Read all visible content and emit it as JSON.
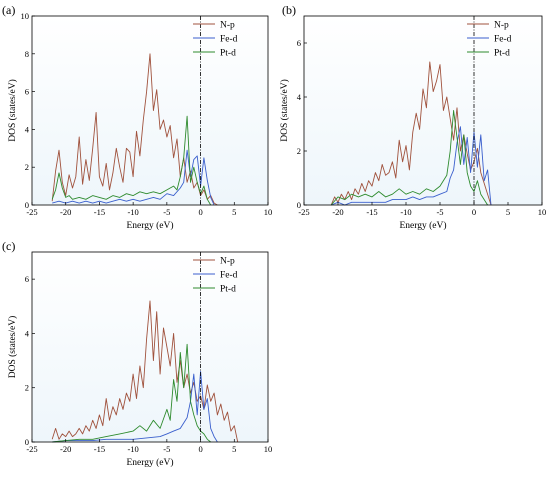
{
  "chart_data": [
    {
      "type": "line",
      "panel": "(a)",
      "xlabel": "Energy (eV)",
      "ylabel": "DOS (states/eV)",
      "xlim": [
        -25,
        10
      ],
      "ylim": [
        0,
        10
      ],
      "xticks": [
        -25,
        -20,
        -15,
        -10,
        -5,
        0,
        5,
        10
      ],
      "yticks": [
        0,
        2,
        4,
        6,
        8,
        10
      ],
      "fermi_level": 0,
      "legend": "top-right",
      "series": [
        {
          "name": "N-p",
          "color": "#a0523d",
          "x": [
            -22,
            -21.5,
            -21,
            -20.5,
            -20,
            -19.5,
            -19,
            -18.5,
            -18,
            -17.5,
            -17,
            -16.5,
            -16,
            -15.5,
            -15,
            -14.5,
            -14,
            -13.5,
            -13,
            -12.5,
            -12,
            -11.5,
            -11,
            -10.5,
            -10,
            -9.5,
            -9,
            -8.5,
            -8,
            -7.5,
            -7,
            -6.5,
            -6,
            -5.5,
            -5,
            -4.5,
            -4,
            -3.5,
            -3,
            -2.5,
            -2,
            -1.5,
            -1,
            -0.5,
            0,
            0.5,
            1,
            1.5,
            2,
            2.5
          ],
          "y": [
            0.2,
            1.8,
            2.9,
            1.2,
            0.5,
            1.6,
            0.9,
            1.5,
            3.6,
            1.1,
            2.4,
            1.3,
            3.0,
            4.9,
            1.5,
            1.0,
            2.2,
            0.8,
            1.7,
            3.0,
            2.0,
            1.2,
            3.0,
            2.8,
            1.5,
            3.9,
            2.6,
            4.5,
            6.0,
            8.0,
            5.0,
            6.1,
            4.0,
            4.5,
            3.6,
            4.2,
            2.5,
            3.5,
            1.5,
            2.5,
            1.2,
            1.8,
            0.9,
            1.2,
            0.5,
            0.8,
            0.3,
            0.5,
            0.1,
            0
          ]
        },
        {
          "name": "Fe-d",
          "color": "#3a5fcd",
          "x": [
            -22,
            -21,
            -20,
            -19,
            -18,
            -17,
            -16,
            -15,
            -14,
            -13,
            -12,
            -11,
            -10,
            -9,
            -8,
            -7,
            -6,
            -5,
            -4,
            -3,
            -2.5,
            -2,
            -1.5,
            -1,
            -0.5,
            0,
            0.5,
            1,
            1.5,
            2
          ],
          "y": [
            0.1,
            0.2,
            0.1,
            0.2,
            0.1,
            0.2,
            0.1,
            0.2,
            0.1,
            0.2,
            0.3,
            0.2,
            0.3,
            0.2,
            0.3,
            0.4,
            0.3,
            0.6,
            0.5,
            0.9,
            1.2,
            2.9,
            1.5,
            2.4,
            2.6,
            1.0,
            2.5,
            1.3,
            0.4,
            0
          ]
        },
        {
          "name": "Pt-d",
          "color": "#2e8b2e",
          "x": [
            -22,
            -21.5,
            -21,
            -20.5,
            -20,
            -19.5,
            -19,
            -18,
            -17,
            -16,
            -15,
            -14,
            -13,
            -12,
            -11,
            -10,
            -9,
            -8,
            -7,
            -6,
            -5,
            -4.5,
            -4,
            -3.5,
            -3,
            -2.5,
            -2,
            -1.5,
            -1,
            -0.5,
            0,
            0.5,
            1,
            1.5
          ],
          "y": [
            0.3,
            0.8,
            1.7,
            0.9,
            0.4,
            0.5,
            0.3,
            0.4,
            0.3,
            0.5,
            0.4,
            0.3,
            0.5,
            0.4,
            0.6,
            0.5,
            0.7,
            0.6,
            0.7,
            0.6,
            0.8,
            0.9,
            1.0,
            0.8,
            1.5,
            2.5,
            4.7,
            1.2,
            2.0,
            1.2,
            0.6,
            1.0,
            0.3,
            0
          ]
        }
      ]
    },
    {
      "type": "line",
      "panel": "(b)",
      "xlabel": "Energy (eV)",
      "ylabel": "DOS (states/eV)",
      "xlim": [
        -25,
        10
      ],
      "ylim": [
        0,
        7
      ],
      "xticks": [
        -25,
        -20,
        -15,
        -10,
        -5,
        0,
        5,
        10
      ],
      "yticks": [
        0,
        2,
        4,
        6
      ],
      "fermi_level": 0,
      "legend": "top-right",
      "series": [
        {
          "name": "N-p",
          "color": "#a0523d",
          "x": [
            -21,
            -20.5,
            -20,
            -19.5,
            -19,
            -18.5,
            -18,
            -17.5,
            -17,
            -16.5,
            -16,
            -15.5,
            -15,
            -14.5,
            -14,
            -13.5,
            -13,
            -12.5,
            -12,
            -11.5,
            -11,
            -10.5,
            -10,
            -9.5,
            -9,
            -8.5,
            -8,
            -7.5,
            -7,
            -6.5,
            -6,
            -5.5,
            -5,
            -4.5,
            -4,
            -3.5,
            -3,
            -2.5,
            -2,
            -1.5,
            -1,
            -0.5,
            0,
            0.5,
            1,
            1.5,
            2,
            2.5
          ],
          "y": [
            0,
            0.3,
            0.1,
            0.4,
            0.2,
            0.5,
            0.2,
            0.6,
            0.4,
            0.8,
            0.5,
            0.9,
            0.7,
            1.2,
            0.9,
            1.5,
            1.1,
            1.2,
            1.6,
            1.0,
            2.4,
            1.6,
            2.2,
            1.3,
            2.7,
            3.4,
            2.8,
            4.3,
            3.6,
            5.3,
            4.2,
            4.6,
            5.2,
            3.5,
            4.0,
            3.2,
            2.4,
            3.6,
            2.0,
            2.6,
            1.9,
            1.3,
            1.6,
            2.1,
            1.2,
            0.8,
            0.4,
            0
          ]
        },
        {
          "name": "Fe-d",
          "color": "#3a5fcd",
          "x": [
            -21,
            -20,
            -19,
            -18,
            -17,
            -16,
            -15,
            -14,
            -13,
            -12,
            -11,
            -10,
            -9,
            -8,
            -7,
            -6,
            -5,
            -4,
            -3.5,
            -3,
            -2.5,
            -2,
            -1.5,
            -1,
            -0.5,
            0,
            0.5,
            1,
            1.5,
            2,
            2.5
          ],
          "y": [
            0,
            0.1,
            0,
            0.1,
            0.1,
            0.1,
            0.1,
            0.1,
            0.1,
            0.2,
            0.2,
            0.2,
            0.3,
            0.2,
            0.3,
            0.3,
            0.4,
            0.5,
            1.0,
            1.3,
            2.3,
            2.9,
            1.5,
            2.5,
            1.2,
            2.7,
            1.4,
            2.6,
            0.9,
            1.3,
            0
          ]
        },
        {
          "name": "Pt-d",
          "color": "#2e8b2e",
          "x": [
            -21,
            -20,
            -19,
            -18,
            -17,
            -16,
            -15,
            -14,
            -13,
            -12,
            -11,
            -10,
            -9,
            -8,
            -7,
            -6,
            -5,
            -4,
            -3.5,
            -3,
            -2.5,
            -2,
            -1.5,
            -1,
            -0.5,
            0,
            0.5,
            1,
            1.5,
            2
          ],
          "y": [
            0,
            0.3,
            0.2,
            0.4,
            0.3,
            0.4,
            0.3,
            0.5,
            0.3,
            0.4,
            0.6,
            0.4,
            0.5,
            0.4,
            0.6,
            0.5,
            0.7,
            1.1,
            2.0,
            3.5,
            2.5,
            1.5,
            2.6,
            1.2,
            0.7,
            0.5,
            0.9,
            0.4,
            0.2,
            0
          ]
        }
      ]
    },
    {
      "type": "line",
      "panel": "(c)",
      "xlabel": "Energy (eV)",
      "ylabel": "DOS (states/eV)",
      "xlim": [
        -25,
        10
      ],
      "ylim": [
        0,
        7
      ],
      "xticks": [
        -25,
        -20,
        -15,
        -10,
        -5,
        0,
        5,
        10
      ],
      "yticks": [
        0,
        2,
        4,
        6
      ],
      "fermi_level": 0,
      "legend": "top-right",
      "series": [
        {
          "name": "N-p",
          "color": "#a0523d",
          "x": [
            -22,
            -21.5,
            -21,
            -20.5,
            -20,
            -19.5,
            -19,
            -18.5,
            -18,
            -17.5,
            -17,
            -16.5,
            -16,
            -15.5,
            -15,
            -14.5,
            -14,
            -13.5,
            -13,
            -12.5,
            -12,
            -11.5,
            -11,
            -10.5,
            -10,
            -9.5,
            -9,
            -8.5,
            -8,
            -7.5,
            -7,
            -6.5,
            -6,
            -5.5,
            -5,
            -4.5,
            -4,
            -3.5,
            -3,
            -2.5,
            -2,
            -1.5,
            -1,
            -0.5,
            0,
            0.5,
            1,
            1.5,
            2,
            2.5,
            3,
            3.5,
            4,
            4.5,
            5,
            5.5
          ],
          "y": [
            0.1,
            0.5,
            0.1,
            0.3,
            0.2,
            0.4,
            0.2,
            0.3,
            0.5,
            0.3,
            0.6,
            0.4,
            0.8,
            0.5,
            1.0,
            0.6,
            1.6,
            0.8,
            1.3,
            1.0,
            1.6,
            1.2,
            1.8,
            1.5,
            2.5,
            1.6,
            2.8,
            2.0,
            3.8,
            5.2,
            3.0,
            4.8,
            2.5,
            4.2,
            3.5,
            2.8,
            4.0,
            2.2,
            3.0,
            2.0,
            2.5,
            1.8,
            2.2,
            1.5,
            1.7,
            1.2,
            2.1,
            1.5,
            1.8,
            1.0,
            1.4,
            0.8,
            1.1,
            0.4,
            0.6,
            0
          ]
        },
        {
          "name": "Fe-d",
          "color": "#3a5fcd",
          "x": [
            -22,
            -20,
            -18,
            -16,
            -14,
            -12,
            -10,
            -8,
            -6,
            -5,
            -4,
            -3,
            -2,
            -1.5,
            -1,
            -0.5,
            0,
            0.5,
            1,
            1.5,
            2,
            2.5
          ],
          "y": [
            0,
            0.05,
            0.05,
            0.05,
            0.1,
            0.1,
            0.1,
            0.15,
            0.2,
            0.3,
            0.4,
            0.5,
            0.9,
            1.5,
            2.5,
            1.0,
            2.6,
            1.2,
            1.6,
            0.5,
            0.2,
            0
          ]
        },
        {
          "name": "Pt-d",
          "color": "#2e8b2e",
          "x": [
            -22,
            -20,
            -18,
            -16,
            -14,
            -12,
            -10,
            -9,
            -8,
            -7,
            -6,
            -5,
            -4.5,
            -4,
            -3.5,
            -3,
            -2.5,
            -2,
            -1.5,
            -1,
            -0.5,
            0,
            0.5,
            1,
            1.5
          ],
          "y": [
            0,
            0.05,
            0.1,
            0.1,
            0.2,
            0.3,
            0.4,
            0.6,
            0.4,
            0.8,
            0.5,
            1.2,
            0.8,
            2.3,
            1.5,
            3.3,
            2.0,
            3.6,
            1.5,
            1.0,
            0.6,
            0.4,
            0.3,
            0.1,
            0
          ]
        }
      ]
    }
  ]
}
